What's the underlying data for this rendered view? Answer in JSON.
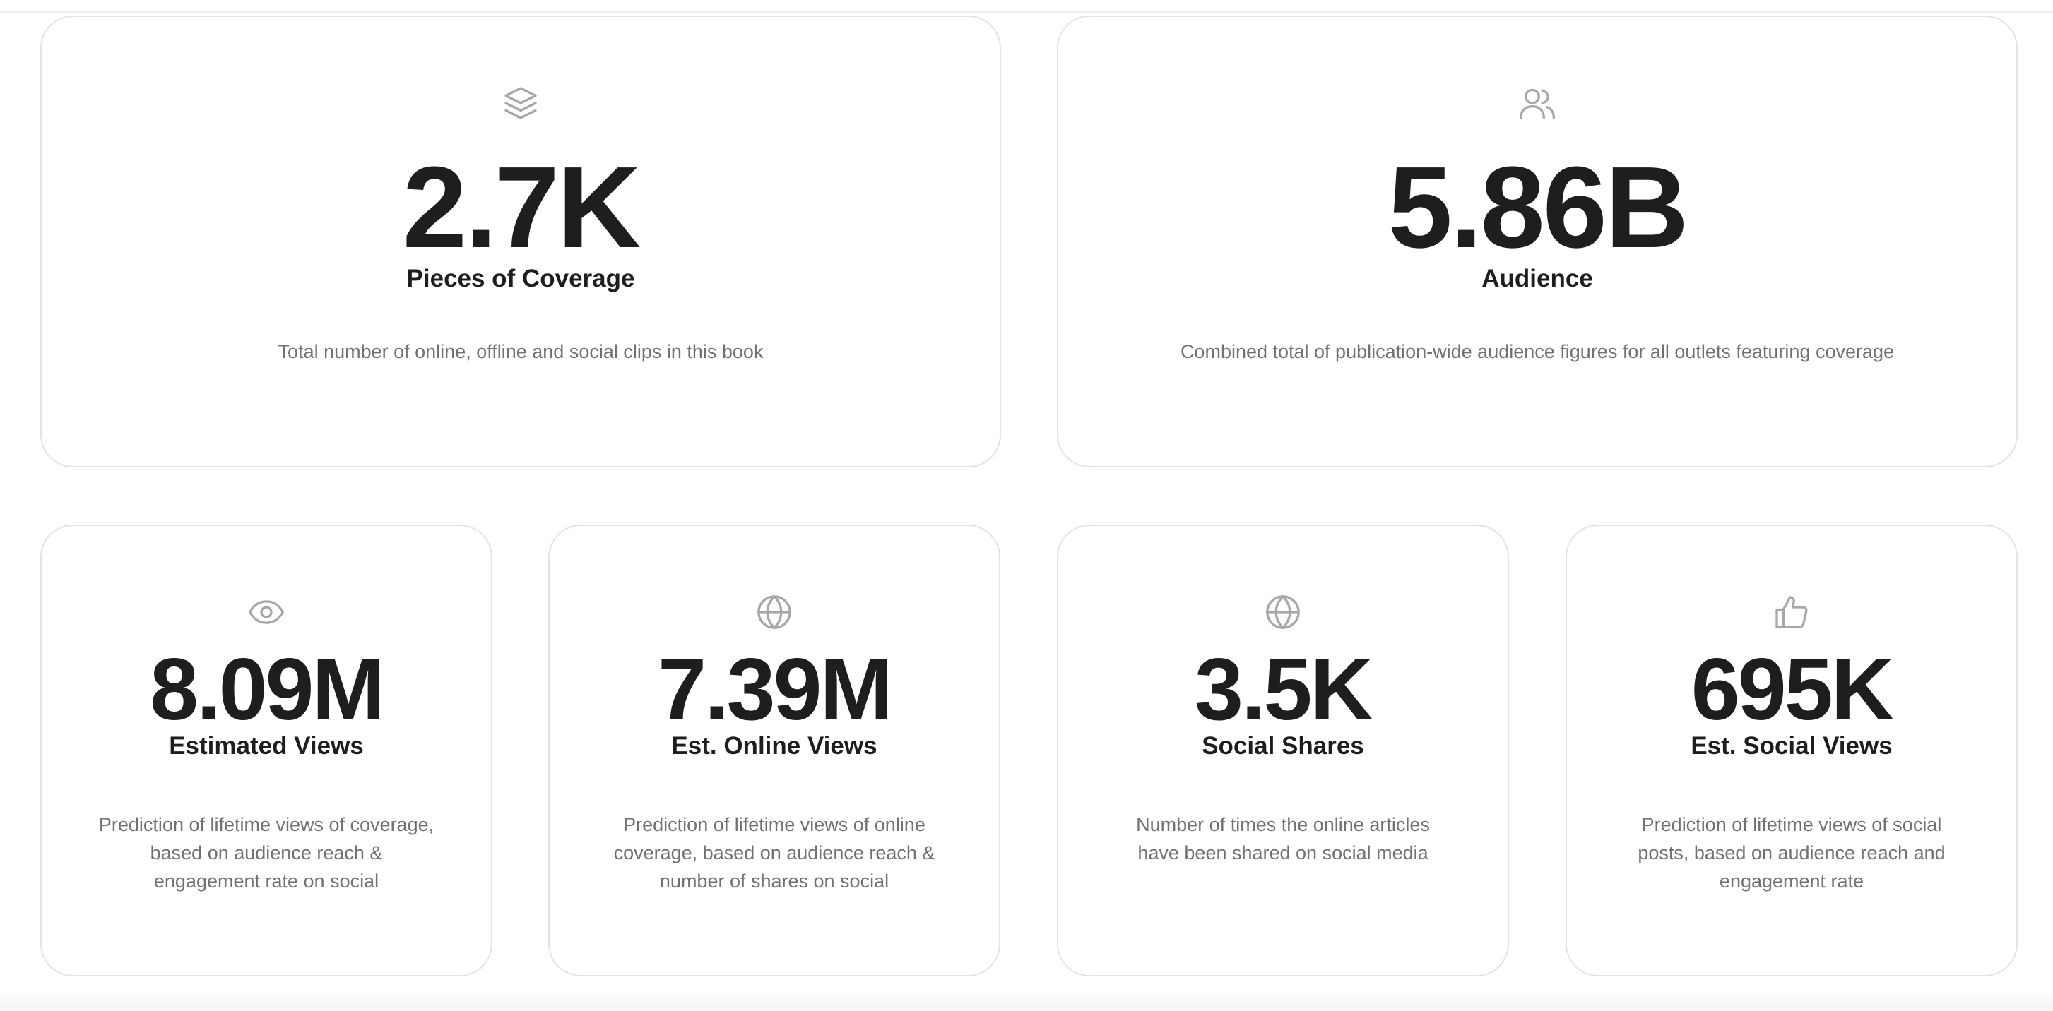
{
  "metrics": [
    {
      "value": "2.7K",
      "label": "Pieces of Coverage",
      "description": "Total number of online, offline and social clips in this book",
      "icon": "layers-icon"
    },
    {
      "value": "5.86B",
      "label": "Audience",
      "description": "Combined total of publication-wide audience figures for all outlets featuring coverage",
      "icon": "users-icon"
    },
    {
      "value": "8.09M",
      "label": "Estimated Views",
      "description": "Prediction of lifetime views of coverage, based on audience reach & engagement rate on social",
      "icon": "eye-icon"
    },
    {
      "value": "7.39M",
      "label": "Est. Online Views",
      "description": "Prediction of lifetime views of online coverage, based on audience reach & number of shares on social",
      "icon": "globe-icon"
    },
    {
      "value": "3.5K",
      "label": "Social Shares",
      "description": "Number of times the online articles have been shared on social media",
      "icon": "globe-icon"
    },
    {
      "value": "695K",
      "label": "Est. Social Views",
      "description": "Prediction of lifetime views of social posts, based on audience reach and engagement rate",
      "icon": "thumbs-up-icon"
    }
  ],
  "colors": {
    "value_text": "#1d1e20",
    "description_text": "#6f7178",
    "icon": "#a7a7ab",
    "card_border": "#e3e3e6"
  }
}
